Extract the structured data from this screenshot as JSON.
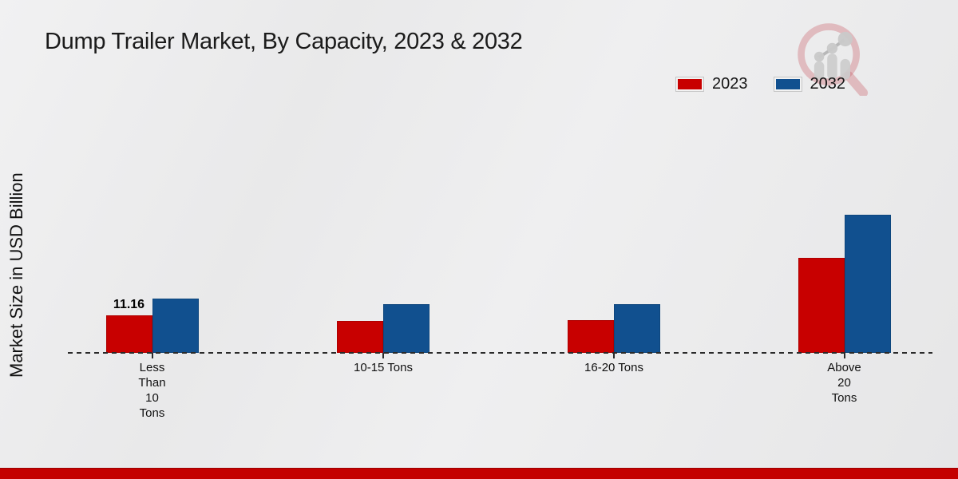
{
  "header": {
    "title": "Dump Trailer Market, By Capacity, 2023 & 2032"
  },
  "chart_data": {
    "type": "bar",
    "title": "Dump Trailer Market, By Capacity, 2023 & 2032",
    "xlabel": "",
    "ylabel": "Market Size in USD Billion",
    "categories": [
      "Less Than 10 Tons",
      "10-15 Tons",
      "16-20 Tons",
      "Above 20 Tons"
    ],
    "category_label_lines": [
      [
        "Less",
        "Than",
        "10",
        "Tons"
      ],
      [
        "10-15 Tons"
      ],
      [
        "16-20 Tons"
      ],
      [
        "Above",
        "20",
        "Tons"
      ]
    ],
    "series": [
      {
        "name": "2023",
        "color": "#c80000",
        "values": [
          11.16,
          9.5,
          9.7,
          28.2
        ]
      },
      {
        "name": "2032",
        "color": "#11508f",
        "values": [
          16.1,
          14.4,
          14.4,
          41.0
        ]
      }
    ],
    "bar_labels": [
      [
        "11.16",
        "",
        "",
        ""
      ],
      [
        "",
        "",
        "",
        ""
      ]
    ],
    "ylim": [
      0,
      45
    ],
    "grid": false,
    "baseline_style": "dashed",
    "legend_position": "top-right"
  },
  "colors": {
    "series_2023": "#c80000",
    "series_2032": "#11508f",
    "footer_stripe": "#c40000",
    "background": "#ebebec",
    "text": "#1a1a1a"
  }
}
